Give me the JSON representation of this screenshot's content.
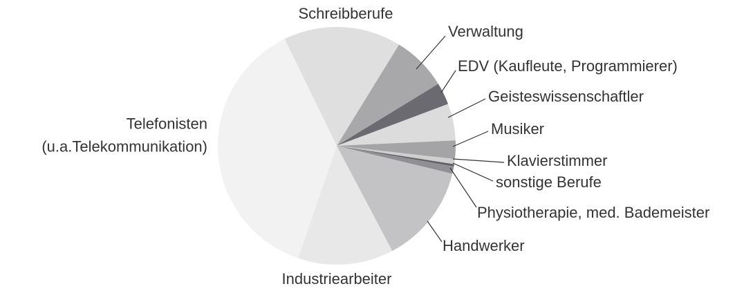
{
  "chart_data": {
    "type": "pie",
    "categories": [
      "Schreibberufe",
      "Verwaltung",
      "EDV (Kaufleute, Programmierer)",
      "Geisteswissenschaftler",
      "Musiker",
      "Klavierstimmer",
      "sonstige Berufe",
      "Physiotherapie, med. Bademeister",
      "Handwerker",
      "Industriearbeiter",
      "Telefonisten\n(u.a.Telekommunikation)"
    ],
    "values": [
      16,
      7.5,
      3,
      5,
      2.5,
      0.7,
      0.3,
      1,
      13.5,
      13,
      37.5
    ],
    "colors": [
      "#dfdfe0",
      "#a8a8ab",
      "#6a6a70",
      "#dcdcdd",
      "#a4a4a7",
      "#cfcfd0",
      "#606065",
      "#8f8f94",
      "#c3c3c5",
      "#e8e8e9",
      "#f2f2f2"
    ]
  }
}
